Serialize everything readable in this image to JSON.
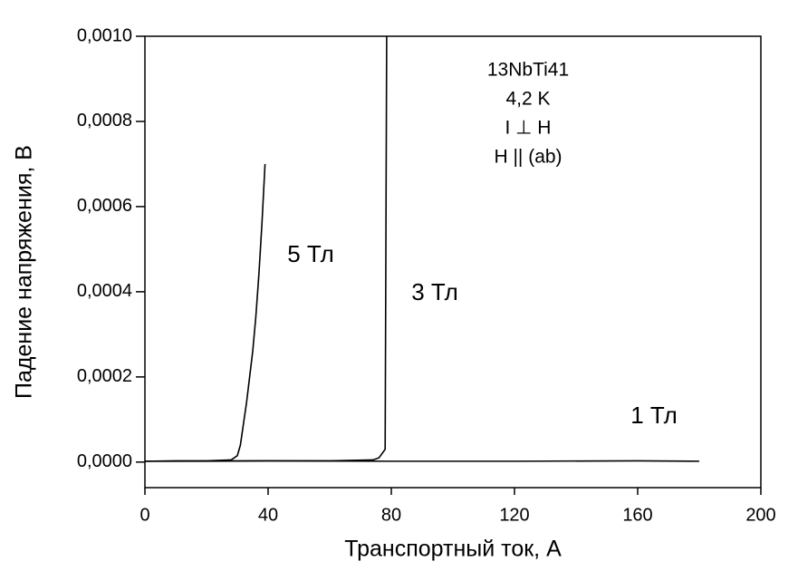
{
  "chart_data": {
    "type": "line",
    "xlabel": "Транспортный ток, А",
    "ylabel": "Падение напряжения, В",
    "annotations": [
      "13NbTi41",
      "4,2 K",
      "I ⊥ H",
      "H || (ab)"
    ],
    "xlim": [
      0,
      200
    ],
    "xticks": [
      0,
      40,
      80,
      120,
      160,
      200
    ],
    "ylim": [
      -6e-05,
      0.001
    ],
    "yticks": [
      {
        "value": 0,
        "label": "0,0000"
      },
      {
        "value": 0.0002,
        "label": "0,0002"
      },
      {
        "value": 0.0004,
        "label": "0,0004"
      },
      {
        "value": 0.0006,
        "label": "0,0006"
      },
      {
        "value": 0.0008,
        "label": "0,0008"
      },
      {
        "value": 0.001,
        "label": "0,0010"
      }
    ],
    "series": [
      {
        "name": "5 Тл",
        "color": "#000000",
        "x": [
          0,
          10,
          20,
          28,
          30,
          31,
          32,
          33,
          34,
          35,
          36,
          37,
          38,
          39
        ],
        "values": [
          2e-06,
          3e-06,
          3e-06,
          5e-06,
          1.5e-05,
          4e-05,
          9e-05,
          0.00014,
          0.0002,
          0.00026,
          0.00034,
          0.00044,
          0.00056,
          0.0007
        ]
      },
      {
        "name": "3 Тл",
        "color": "#000000",
        "x": [
          0,
          20,
          40,
          60,
          74,
          76,
          78,
          78.5
        ],
        "values": [
          2e-06,
          2e-06,
          3e-06,
          3e-06,
          5e-06,
          1e-05,
          3e-05,
          0.001
        ]
      },
      {
        "name": "1 Тл",
        "color": "#000000",
        "x": [
          0,
          40,
          80,
          120,
          160,
          180
        ],
        "values": [
          2e-06,
          3e-06,
          2e-06,
          2e-06,
          3e-06,
          2e-06
        ]
      }
    ]
  }
}
